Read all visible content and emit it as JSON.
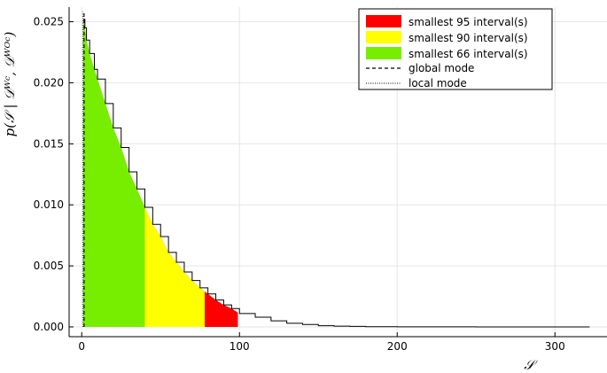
{
  "chart_data": {
    "type": "area",
    "title": "",
    "xlabel": "𝒮",
    "ylabel": "p(𝒮 | 𝒟ᵂᶜ, 𝒟ᵂᴼᶜ)",
    "xlim": [
      -8,
      333
    ],
    "ylim": [
      -0.0008,
      0.0262
    ],
    "x_ticks": [
      0,
      100,
      200,
      300
    ],
    "x_tick_labels": [
      "0",
      "100",
      "200",
      "300"
    ],
    "y_ticks": [
      0.0,
      0.005,
      0.01,
      0.015,
      0.02,
      0.025
    ],
    "y_tick_labels": [
      "0.000",
      "0.005",
      "0.010",
      "0.015",
      "0.020",
      "0.025"
    ],
    "grid": true,
    "legend_position": "top-right",
    "density_curve": {
      "x": [
        1,
        2,
        3,
        5,
        8,
        10,
        15,
        20,
        25,
        30,
        35,
        40,
        45,
        50,
        55,
        60,
        65,
        70,
        75,
        80,
        85,
        90,
        95,
        100,
        110,
        120,
        130,
        140,
        150,
        160,
        170,
        180,
        200,
        220,
        250,
        280,
        300,
        322
      ],
      "y": [
        0.0252,
        0.0245,
        0.0235,
        0.0224,
        0.0211,
        0.0203,
        0.0183,
        0.0163,
        0.0147,
        0.0127,
        0.0113,
        0.0098,
        0.0084,
        0.0074,
        0.0061,
        0.0053,
        0.0045,
        0.0038,
        0.0032,
        0.0027,
        0.0022,
        0.0018,
        0.0015,
        0.0011,
        0.0008,
        0.0005,
        0.0003,
        0.0002,
        0.0001,
        6e-05,
        4e-05,
        2e-05,
        1e-05,
        1e-05,
        0.0,
        0.0,
        0.0,
        0.0
      ]
    },
    "intervals": [
      {
        "name": "smallest 95 interval(s)",
        "color": "#ff0000",
        "range": [
          1,
          99
        ]
      },
      {
        "name": "smallest 90 interval(s)",
        "color": "#ffff00",
        "range": [
          1,
          78
        ]
      },
      {
        "name": "smallest 66 interval(s)",
        "color": "#77ee00",
        "range": [
          1,
          40
        ]
      }
    ],
    "global_mode": {
      "name": "global mode",
      "x": 1.5
    },
    "local_mode": {
      "name": "local mode",
      "x": 0.8
    }
  }
}
